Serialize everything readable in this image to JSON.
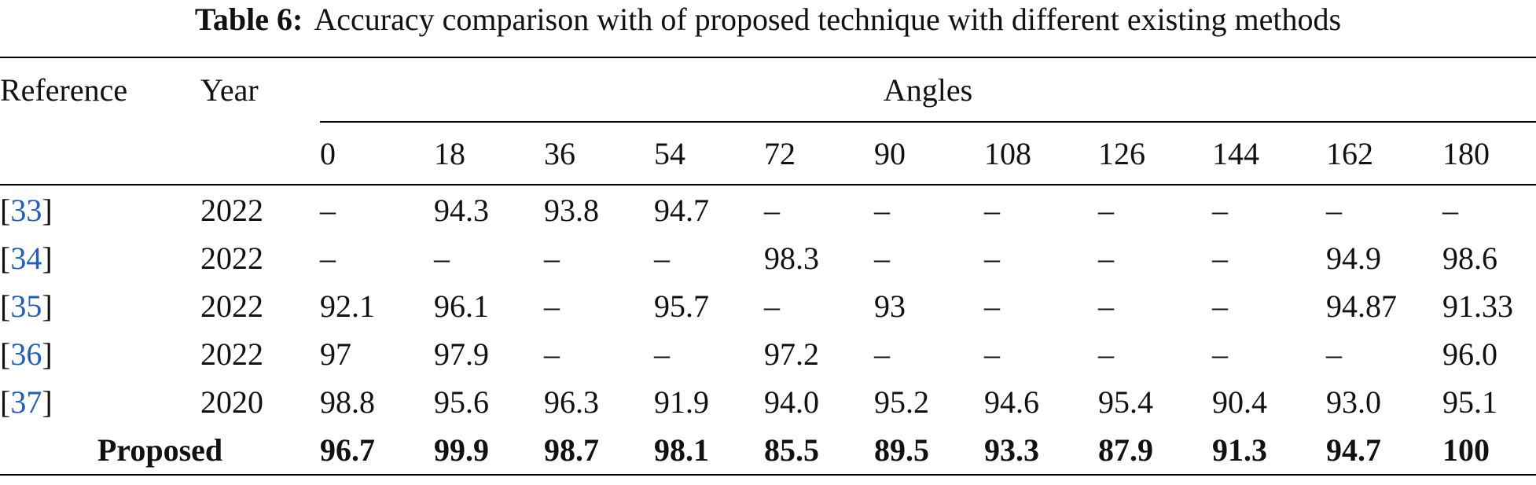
{
  "caption": {
    "label": "Table 6:",
    "text": "Accuracy comparison with of proposed technique with different existing methods"
  },
  "table": {
    "col_reference": "Reference",
    "col_year": "Year",
    "col_angles": "Angles",
    "angles": [
      "0",
      "18",
      "36",
      "54",
      "72",
      "90",
      "108",
      "126",
      "144",
      "162",
      "180"
    ],
    "rows": [
      {
        "ref": "33",
        "year": "2022",
        "values": [
          "–",
          "94.3",
          "93.8",
          "94.7",
          "–",
          "–",
          "–",
          "–",
          "–",
          "–",
          "–"
        ]
      },
      {
        "ref": "34",
        "year": "2022",
        "values": [
          "–",
          "–",
          "–",
          "–",
          "98.3",
          "–",
          "–",
          "–",
          "–",
          "94.9",
          "98.6"
        ]
      },
      {
        "ref": "35",
        "year": "2022",
        "values": [
          "92.1",
          "96.1",
          "–",
          "95.7",
          "–",
          "93",
          "–",
          "–",
          "–",
          "94.87",
          "91.33"
        ]
      },
      {
        "ref": "36",
        "year": "2022",
        "values": [
          "97",
          "97.9",
          "–",
          "–",
          "97.2",
          "–",
          "–",
          "–",
          "–",
          "–",
          "96.0"
        ]
      },
      {
        "ref": "37",
        "year": "2020",
        "values": [
          "98.8",
          "95.6",
          "96.3",
          "91.9",
          "94.0",
          "95.2",
          "94.6",
          "95.4",
          "90.4",
          "93.0",
          "95.1"
        ]
      }
    ],
    "proposed": {
      "label": "Proposed",
      "values": [
        "96.7",
        "99.9",
        "98.7",
        "98.1",
        "85.5",
        "89.5",
        "93.3",
        "87.9",
        "91.3",
        "94.7",
        "100"
      ]
    }
  }
}
